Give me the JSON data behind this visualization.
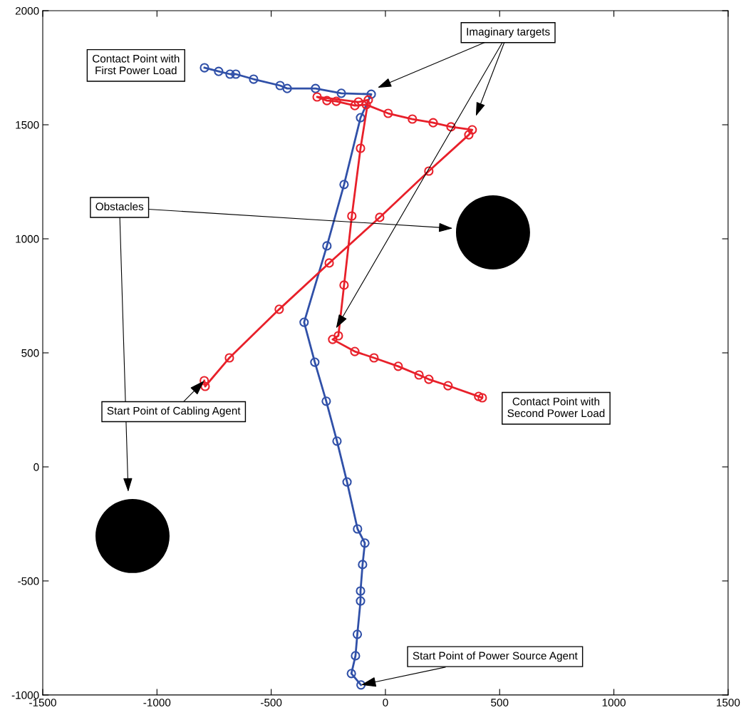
{
  "chart_data": {
    "type": "line",
    "marker": "circle",
    "line_style": "solid",
    "grid": false,
    "xlim": [
      -1500,
      1500
    ],
    "xticks": [
      -1500,
      -1000,
      -500,
      0,
      500,
      1000,
      1500
    ],
    "ylim": [
      -1000,
      2000
    ],
    "yticks": [
      -1000,
      -500,
      0,
      500,
      1000,
      1500,
      2000
    ],
    "series": [
      {
        "color": "#3050a8",
        "x": [
          -107,
          -149,
          -131,
          -123,
          -109,
          -109,
          -100,
          -90,
          -122,
          -168,
          -212,
          -259,
          -309,
          -356,
          -256,
          -181,
          -109,
          -62,
          -193,
          -306,
          -430,
          -461,
          -577,
          -655,
          -680,
          -730,
          -792
        ],
        "values": [
          -956,
          -906,
          -828,
          -734,
          -588,
          -544,
          -428,
          -334,
          -272,
          -66,
          113,
          288,
          459,
          634,
          969,
          1238,
          1531,
          1634,
          1638,
          1659,
          1659,
          1672,
          1700,
          1722,
          1722,
          1734,
          1750
        ]
      },
      {
        "color": "#e8202a",
        "x": [
          -793,
          -789,
          -683,
          -465,
          -246,
          -25,
          190,
          365,
          380,
          287,
          209,
          118,
          12,
          -84,
          -134,
          -215,
          -256,
          -299,
          -118,
          -75,
          -109,
          -147,
          -181,
          -206,
          -231,
          -134,
          -50,
          56,
          147,
          190,
          274,
          408,
          424
        ],
        "values": [
          378,
          353,
          478,
          691,
          894,
          1094,
          1297,
          1456,
          1478,
          1491,
          1509,
          1525,
          1550,
          1588,
          1584,
          1603,
          1606,
          1622,
          1600,
          1609,
          1397,
          1100,
          797,
          575,
          559,
          506,
          478,
          441,
          403,
          384,
          356,
          309,
          303
        ]
      },
      {
        "type": "bubble",
        "color": "#000000",
        "x": [
          471,
          -1107
        ],
        "values": [
          1028,
          -303
        ],
        "sizes": [
          1,
          1
        ]
      }
    ],
    "annotations": [
      "Contact Point with\nFirst Power Load",
      "Imaginary targets",
      "Obstacles",
      {
        "text": "Start Point of Cabling Agent",
        "x": -793,
        "y": 378
      },
      "Contact Point with\nSecond Power Load",
      {
        "text": "Start Point of Power Source Agent",
        "x": -107,
        "y": -956
      }
    ]
  }
}
